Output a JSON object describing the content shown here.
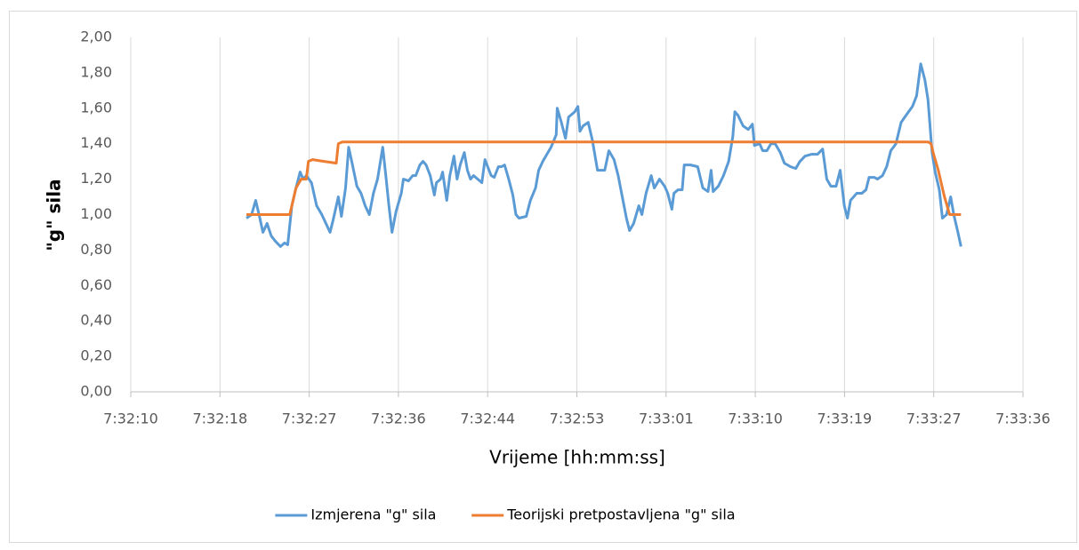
{
  "chart_data": {
    "type": "line",
    "xlabel": "Vrijeme [hh:mm:ss]",
    "ylabel": "\"g\" sila",
    "xlim": [
      27129.6,
      27216.0
    ],
    "xticks": [
      {
        "value": 27129.6,
        "label": "7:32:10"
      },
      {
        "value": 27138.24,
        "label": "7:32:18"
      },
      {
        "value": 27146.88,
        "label": "7:32:27"
      },
      {
        "value": 27155.52,
        "label": "7:32:36"
      },
      {
        "value": 27164.16,
        "label": "7:32:44"
      },
      {
        "value": 27172.8,
        "label": "7:32:53"
      },
      {
        "value": 27181.44,
        "label": "7:33:01"
      },
      {
        "value": 27190.08,
        "label": "7:33:10"
      },
      {
        "value": 27198.72,
        "label": "7:33:19"
      },
      {
        "value": 27207.36,
        "label": "7:33:27"
      },
      {
        "value": 27216.0,
        "label": "7:33:36"
      }
    ],
    "ylim": [
      0,
      2
    ],
    "yticks": [
      {
        "value": 0,
        "label": "0,00"
      },
      {
        "value": 0.2,
        "label": "0,20"
      },
      {
        "value": 0.4,
        "label": "0,40"
      },
      {
        "value": 0.6,
        "label": "0,60"
      },
      {
        "value": 0.8,
        "label": "0,80"
      },
      {
        "value": 1,
        "label": "1,00"
      },
      {
        "value": 1.2,
        "label": "1,20"
      },
      {
        "value": 1.4,
        "label": "1,40"
      },
      {
        "value": 1.6,
        "label": "1,60"
      },
      {
        "value": 1.8,
        "label": "1,80"
      },
      {
        "value": 2,
        "label": "2,00"
      }
    ],
    "grid": "x",
    "legend": "bottom",
    "series": [
      {
        "name": "Izmjerena \"g\" sila",
        "color": "#5b9bd5",
        "x": [
          27140.8,
          27141.3,
          27141.7,
          27142.1,
          27142.4,
          27142.8,
          27143.2,
          27143.6,
          27144.1,
          27144.5,
          27144.8,
          27145.2,
          27145.6,
          27146.0,
          27146.3,
          27146.6,
          27147.1,
          27147.6,
          27148.1,
          27148.5,
          27148.9,
          27149.2,
          27149.7,
          27150.0,
          27150.4,
          27150.7,
          27151.0,
          27151.5,
          27151.9,
          27152.3,
          27152.7,
          27153.1,
          27153.5,
          27154.0,
          27154.3,
          27154.6,
          27154.9,
          27155.3,
          27155.8,
          27156.0,
          27156.5,
          27156.9,
          27157.2,
          27157.6,
          27157.9,
          27158.2,
          27158.6,
          27159.0,
          27159.2,
          27159.6,
          27159.8,
          27160.2,
          27160.5,
          27160.9,
          27161.2,
          27161.5,
          27161.9,
          27162.2,
          27162.5,
          27162.8,
          27163.2,
          27163.6,
          27163.9,
          27164.1,
          27164.5,
          27164.8,
          27165.2,
          27165.5,
          27165.8,
          27166.2,
          27166.6,
          27166.9,
          27167.2,
          27167.9,
          27168.3,
          27168.8,
          27169.1,
          27169.5,
          27169.9,
          27170.3,
          27170.8,
          27170.9,
          27171.3,
          27171.7,
          27172.0,
          27172.6,
          27172.9,
          27173.1,
          27173.4,
          27173.9,
          27174.3,
          27174.8,
          27175.5,
          27175.9,
          27176.4,
          27176.8,
          27177.2,
          27177.6,
          27177.9,
          27178.3,
          27178.8,
          27179.1,
          27179.5,
          27180.0,
          27180.3,
          27180.8,
          27181.3,
          27181.6,
          27182.0,
          27182.2,
          27182.6,
          27183.0,
          27183.2,
          27183.8,
          27184.5,
          27185.0,
          27185.5,
          27185.8,
          27186.0,
          27186.5,
          27187.0,
          27187.5,
          27187.9,
          27188.1,
          27188.4,
          27188.9,
          27189.4,
          27189.8,
          27190.0,
          27190.5,
          27190.8,
          27191.2,
          27191.6,
          27192.0,
          27192.5,
          27192.9,
          27193.5,
          27194.0,
          27194.4,
          27194.9,
          27195.5,
          27196.1,
          27196.6,
          27197.0,
          27197.4,
          27197.9,
          27198.3,
          27198.7,
          27199.0,
          27199.3,
          27199.6,
          27199.9,
          27200.4,
          27200.8,
          27201.1,
          27201.6,
          27201.9,
          27202.4,
          27202.8,
          27203.2,
          27203.7,
          27204.2,
          27204.8,
          27205.3,
          27205.7,
          27206.1,
          27206.5,
          27206.8,
          27207.2,
          27207.5,
          27207.9,
          27208.2,
          27208.6,
          27209.0,
          27209.3,
          27209.7,
          27210.0
        ],
        "values": [
          0.98,
          1.0,
          1.08,
          0.98,
          0.9,
          0.95,
          0.88,
          0.85,
          0.82,
          0.84,
          0.83,
          1.05,
          1.15,
          1.24,
          1.2,
          1.22,
          1.18,
          1.05,
          1.0,
          0.95,
          0.9,
          0.97,
          1.1,
          0.99,
          1.15,
          1.38,
          1.3,
          1.16,
          1.12,
          1.05,
          1.0,
          1.12,
          1.2,
          1.38,
          1.22,
          1.05,
          0.9,
          1.02,
          1.12,
          1.2,
          1.19,
          1.22,
          1.22,
          1.28,
          1.3,
          1.28,
          1.22,
          1.11,
          1.18,
          1.2,
          1.24,
          1.08,
          1.22,
          1.33,
          1.2,
          1.28,
          1.35,
          1.25,
          1.2,
          1.22,
          1.2,
          1.18,
          1.31,
          1.28,
          1.22,
          1.21,
          1.27,
          1.27,
          1.28,
          1.2,
          1.11,
          1.0,
          0.98,
          0.99,
          1.08,
          1.15,
          1.25,
          1.3,
          1.34,
          1.38,
          1.45,
          1.6,
          1.52,
          1.43,
          1.55,
          1.58,
          1.61,
          1.47,
          1.5,
          1.52,
          1.42,
          1.25,
          1.25,
          1.36,
          1.31,
          1.22,
          1.1,
          0.98,
          0.91,
          0.95,
          1.05,
          1.0,
          1.12,
          1.22,
          1.15,
          1.2,
          1.16,
          1.12,
          1.03,
          1.12,
          1.14,
          1.14,
          1.28,
          1.28,
          1.27,
          1.15,
          1.13,
          1.25,
          1.13,
          1.16,
          1.22,
          1.3,
          1.44,
          1.58,
          1.56,
          1.5,
          1.48,
          1.51,
          1.39,
          1.4,
          1.36,
          1.36,
          1.4,
          1.4,
          1.35,
          1.29,
          1.27,
          1.26,
          1.3,
          1.33,
          1.34,
          1.34,
          1.37,
          1.2,
          1.16,
          1.16,
          1.25,
          1.05,
          0.98,
          1.08,
          1.1,
          1.12,
          1.12,
          1.14,
          1.21,
          1.21,
          1.2,
          1.22,
          1.27,
          1.36,
          1.4,
          1.52,
          1.57,
          1.61,
          1.67,
          1.85,
          1.76,
          1.65,
          1.35,
          1.24,
          1.14,
          0.98,
          1.0,
          1.1,
          1.0,
          0.9,
          0.82
        ]
      },
      {
        "name": "Teorijski pretpostavljena \"g\" sila",
        "color": "#ed7d31",
        "x": [
          27140.8,
          27144.7,
          27145.0,
          27145.6,
          27146.1,
          27146.6,
          27146.8,
          27147.2,
          27148.3,
          27149.5,
          27149.7,
          27150.1,
          27206.8,
          27207.1,
          27207.3,
          27207.8,
          27208.4,
          27208.9,
          27210.0
        ],
        "values": [
          1.0,
          1.0,
          1.0,
          1.15,
          1.2,
          1.2,
          1.3,
          1.31,
          1.3,
          1.29,
          1.4,
          1.41,
          1.41,
          1.4,
          1.35,
          1.25,
          1.1,
          1.0,
          1.0
        ]
      }
    ]
  }
}
